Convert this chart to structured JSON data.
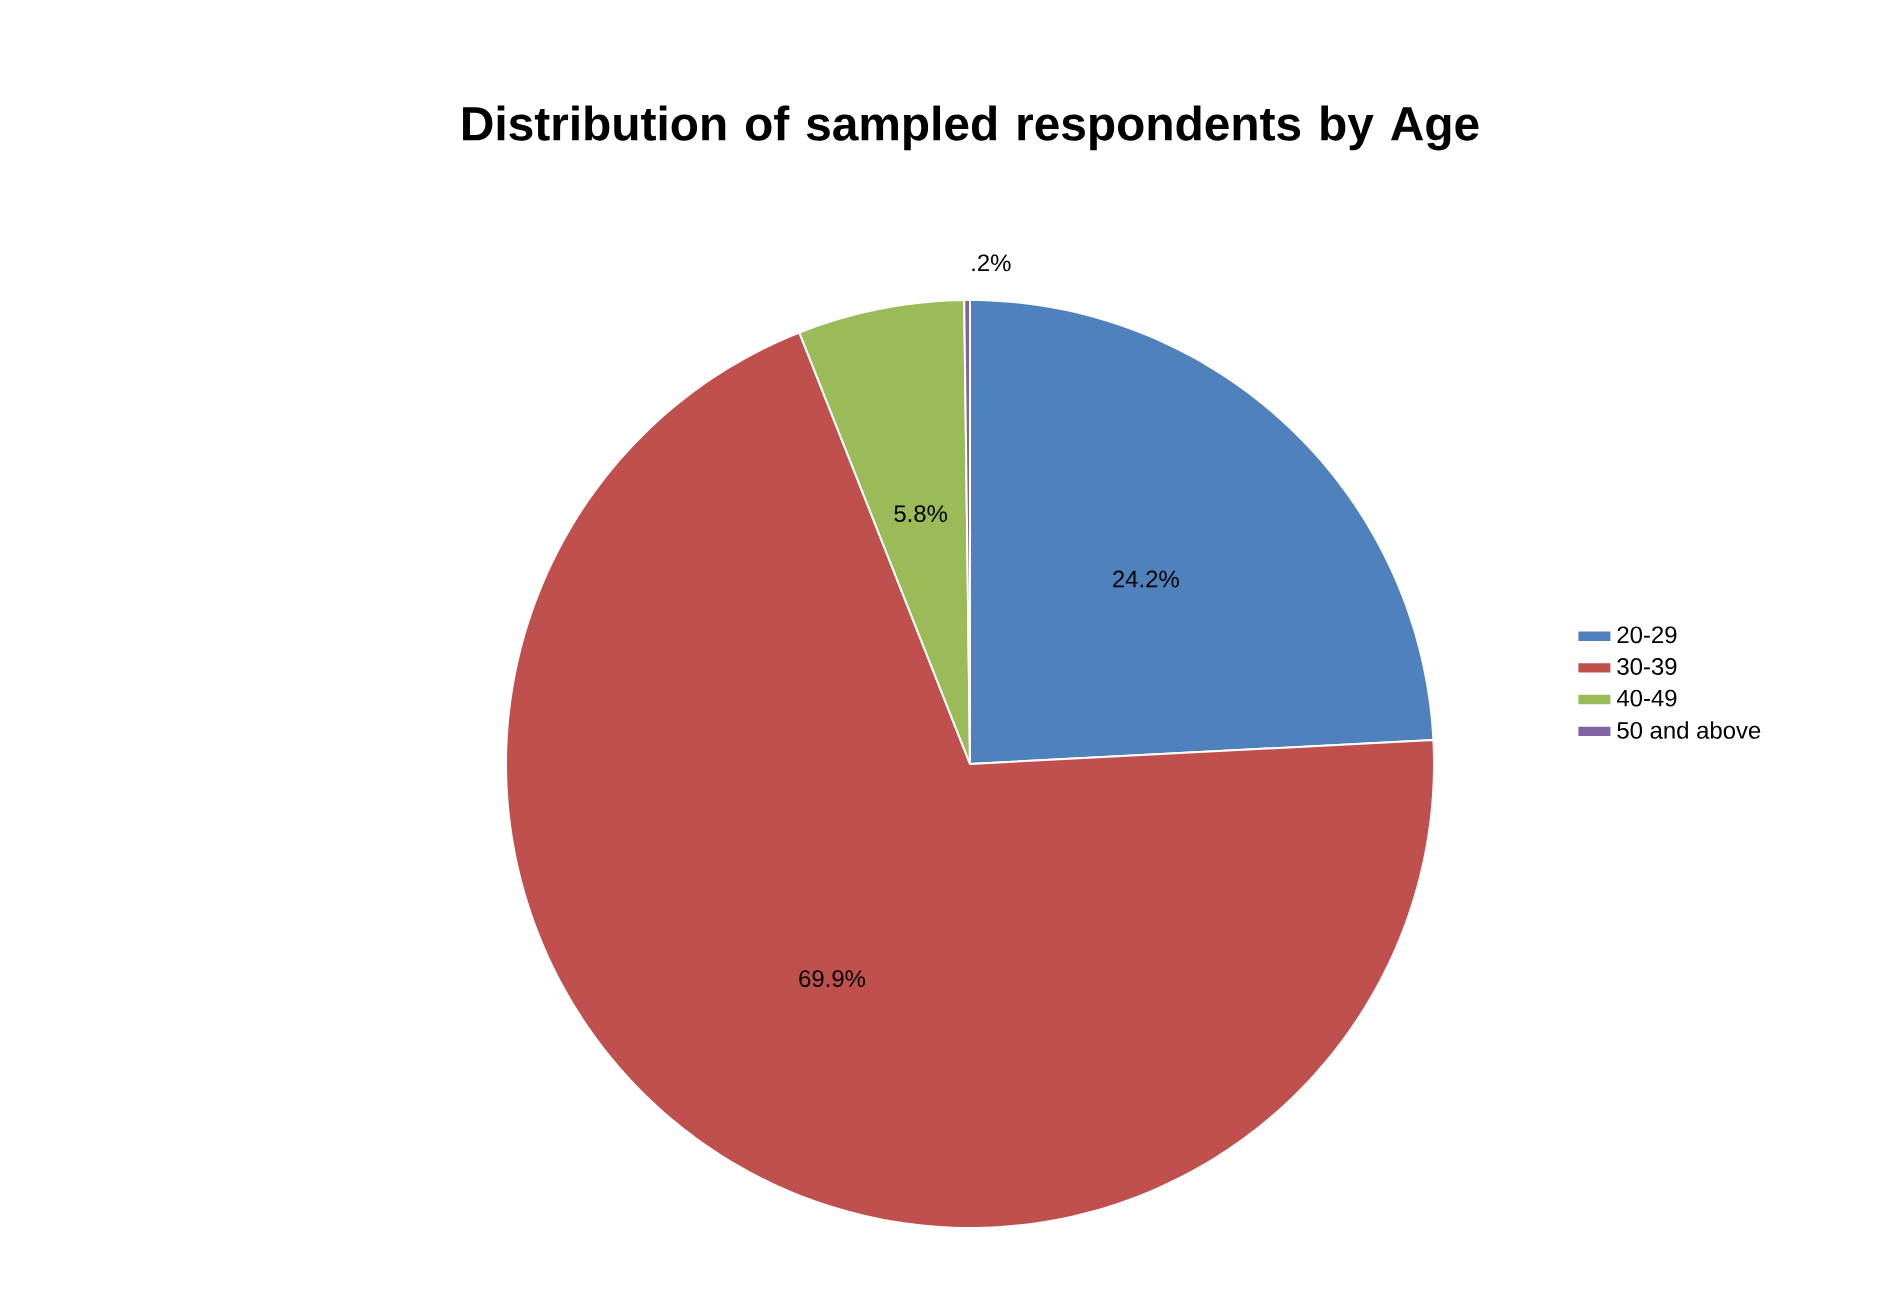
{
  "chart_data": {
    "type": "pie",
    "title": "Distribution of sampled respondents by Age",
    "categories": [
      "20-29",
      "30-39",
      "40-49",
      "50 and above"
    ],
    "values": [
      24.2,
      69.9,
      5.8,
      0.2
    ],
    "colors": [
      "#4f81bd",
      "#c0504d",
      "#9bbb59",
      "#8064a2"
    ],
    "value_labels": [
      "24.2%",
      "69.9%",
      "5.8%",
      ".2%"
    ],
    "legend": "right"
  }
}
